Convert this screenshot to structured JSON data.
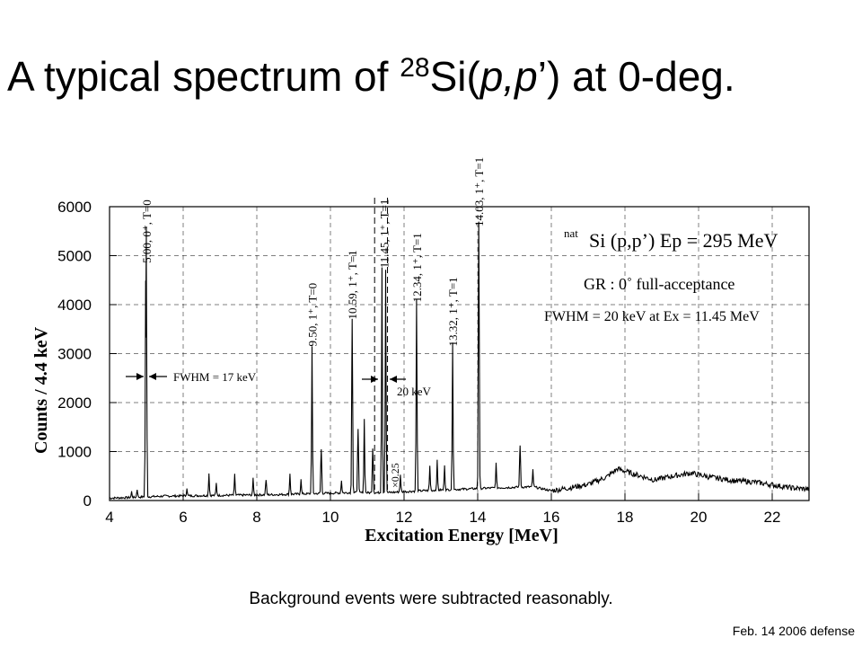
{
  "slide": {
    "title_prefix": "A typical spectrum of ",
    "title_sup": "28",
    "title_main": "Si(",
    "title_p1": "p,p",
    "title_end": "’) at 0-deg.",
    "caption": "Background events were subtracted reasonably.",
    "footer": "Feb. 14 2006 defense"
  },
  "chart_data": {
    "type": "line",
    "xlabel": "Excitation Energy [MeV]",
    "ylabel": "Counts / 4.4 keV",
    "xlim": [
      4,
      23
    ],
    "ylim": [
      0,
      6000
    ],
    "xticks": [
      4,
      6,
      8,
      10,
      12,
      14,
      16,
      18,
      20,
      22
    ],
    "yticks": [
      0,
      1000,
      2000,
      3000,
      4000,
      5000,
      6000
    ],
    "grid": true,
    "baseline": [
      [
        4.0,
        50
      ],
      [
        4.5,
        60
      ],
      [
        5.5,
        90
      ],
      [
        6.5,
        100
      ],
      [
        7.5,
        110
      ],
      [
        8.5,
        120
      ],
      [
        9.5,
        140
      ],
      [
        10.5,
        160
      ],
      [
        11.5,
        160
      ],
      [
        12.5,
        200
      ],
      [
        13.5,
        230
      ],
      [
        14.5,
        260
      ],
      [
        15.5,
        280
      ],
      [
        16.0,
        200
      ],
      [
        16.5,
        260
      ],
      [
        17.0,
        330
      ],
      [
        17.5,
        480
      ],
      [
        17.8,
        650
      ],
      [
        18.2,
        550
      ],
      [
        18.8,
        420
      ],
      [
        19.3,
        500
      ],
      [
        19.8,
        560
      ],
      [
        20.3,
        480
      ],
      [
        21.0,
        400
      ],
      [
        21.5,
        380
      ],
      [
        22.0,
        320
      ],
      [
        22.5,
        260
      ],
      [
        23.0,
        230
      ]
    ],
    "peaks": [
      {
        "e": 4.6,
        "h": 120
      },
      {
        "e": 4.75,
        "h": 150
      },
      {
        "e": 4.98,
        "h": 3250
      },
      {
        "e": 5.0,
        "h": 4700
      },
      {
        "e": 6.1,
        "h": 150
      },
      {
        "e": 6.7,
        "h": 450
      },
      {
        "e": 6.9,
        "h": 250
      },
      {
        "e": 7.4,
        "h": 420
      },
      {
        "e": 7.9,
        "h": 330
      },
      {
        "e": 8.25,
        "h": 300
      },
      {
        "e": 8.9,
        "h": 420
      },
      {
        "e": 9.2,
        "h": 300
      },
      {
        "e": 9.5,
        "h": 3000
      },
      {
        "e": 9.75,
        "h": 900
      },
      {
        "e": 10.3,
        "h": 250
      },
      {
        "e": 10.59,
        "h": 3550
      },
      {
        "e": 10.75,
        "h": 1300
      },
      {
        "e": 10.92,
        "h": 1500
      },
      {
        "e": 11.15,
        "h": 900
      },
      {
        "e": 11.4,
        "h": 4600
      },
      {
        "e": 11.5,
        "h": 4550
      },
      {
        "e": 11.9,
        "h": 350
      },
      {
        "e": 12.34,
        "h": 3900
      },
      {
        "e": 12.7,
        "h": 500
      },
      {
        "e": 12.9,
        "h": 600
      },
      {
        "e": 13.1,
        "h": 500
      },
      {
        "e": 13.32,
        "h": 3000
      },
      {
        "e": 14.03,
        "h": 5450
      },
      {
        "e": 14.5,
        "h": 500
      },
      {
        "e": 15.15,
        "h": 850
      },
      {
        "e": 15.5,
        "h": 350
      }
    ],
    "x_scaled_region": {
      "from": 11.2,
      "to": 11.55,
      "label": "×0.25"
    },
    "peak_labels": [
      {
        "e": 5.0,
        "text": "5.00, 0⁺, T=0"
      },
      {
        "e": 9.5,
        "text": "9.50, 1⁺, T=0"
      },
      {
        "e": 10.59,
        "text": "10.59, 1⁺, T=1"
      },
      {
        "e": 11.45,
        "text": "11.45, 1⁺, T=1"
      },
      {
        "e": 12.34,
        "text": "12.34, 1⁺, T=1"
      },
      {
        "e": 13.32,
        "text": "13.32, 1⁺, T=1"
      },
      {
        "e": 14.03,
        "text": "14.03, 1⁺, T=1"
      }
    ],
    "annotations": {
      "fwhm1": "FWHM = 17 keV",
      "fwhm2": "20 keV",
      "line1_sup": "nat",
      "line1": "Si (p,p’) Ep = 295 MeV",
      "line2": "GR : 0˚ full-acceptance",
      "line3": "FWHM = 20 keV at Ex = 11.45 MeV"
    }
  }
}
